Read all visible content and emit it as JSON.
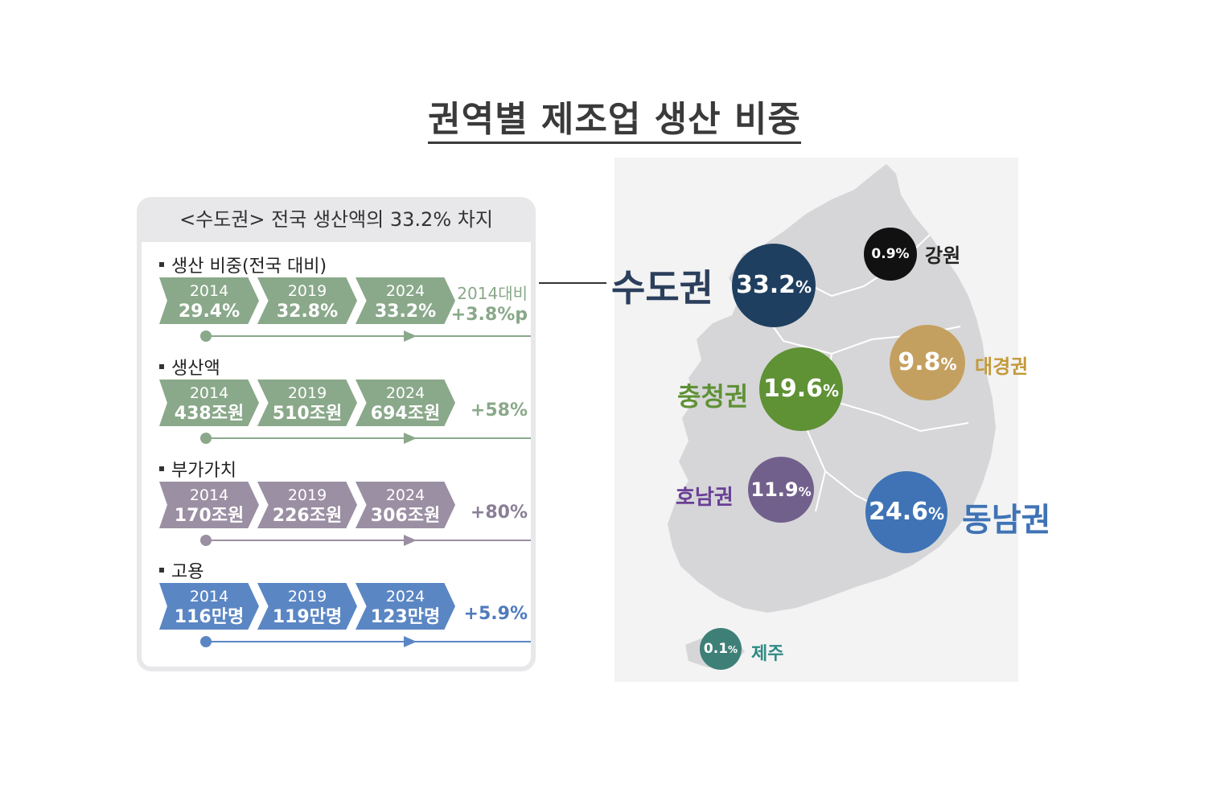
{
  "title": "권역별 제조업 생산 비중",
  "panel": {
    "header": "<수도권> 전국 생산액의 33.2% 차지",
    "sections": [
      {
        "label": "생산 비중(전국 대비)",
        "color": "#8aa88a",
        "years": [
          "2014",
          "2019",
          "2024"
        ],
        "values": [
          "29.4%",
          "32.8%",
          "33.2%"
        ],
        "delta_sub": "2014대비",
        "delta": "+3.8%p"
      },
      {
        "label": "생산액",
        "color": "#8aa88a",
        "years": [
          "2014",
          "2019",
          "2024"
        ],
        "values": [
          "438조원",
          "510조원",
          "694조원"
        ],
        "delta": "+58%"
      },
      {
        "label": "부가가치",
        "color": "#9b8fa3",
        "years": [
          "2014",
          "2019",
          "2024"
        ],
        "values": [
          "170조원",
          "226조원",
          "306조원"
        ],
        "delta": "+80%"
      },
      {
        "label": "고용",
        "color": "#5b86c4",
        "years": [
          "2014",
          "2019",
          "2024"
        ],
        "values": [
          "116만명",
          "119만명",
          "123만명"
        ],
        "delta": "+5.9%"
      }
    ]
  },
  "map": {
    "regions": [
      {
        "name": "수도권",
        "value": "33.2",
        "color": "#1f3f60",
        "label_color": "#2b3f5c"
      },
      {
        "name": "강원",
        "value": "0.9",
        "color": "#111111",
        "label_color": "#222222"
      },
      {
        "name": "충청권",
        "value": "19.6",
        "color": "#5f9135",
        "label_color": "#5f9135"
      },
      {
        "name": "대경권",
        "value": "9.8",
        "color": "#c4a060",
        "label_color": "#c39a3a"
      },
      {
        "name": "호남권",
        "value": "11.9",
        "color": "#72608c",
        "label_color": "#6a3f96"
      },
      {
        "name": "동남권",
        "value": "24.6",
        "color": "#3f73b5",
        "label_color": "#3f73b5"
      },
      {
        "name": "제주",
        "value": "0.1",
        "color": "#3e8078",
        "label_color": "#2f8a84"
      }
    ],
    "unit": "%"
  }
}
